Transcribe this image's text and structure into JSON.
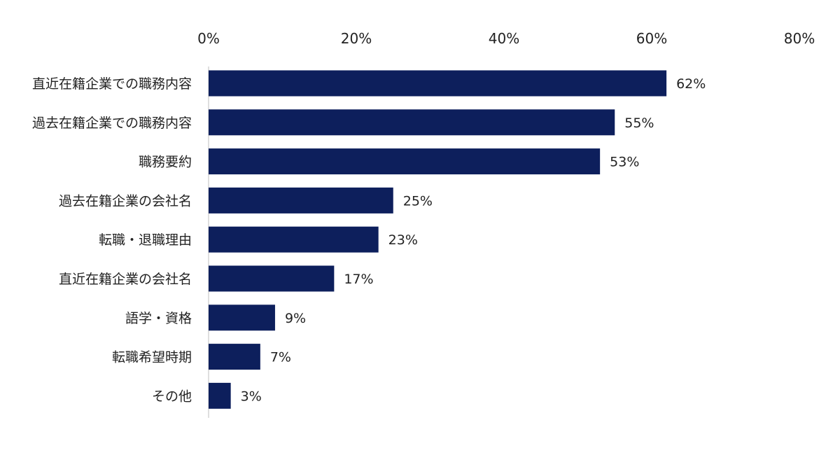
{
  "chart_data": {
    "type": "bar",
    "orientation": "horizontal",
    "categories": [
      "直近在籍企業での職務内容",
      "過去在籍企業での職務内容",
      "職務要約",
      "過去在籍企業の会社名",
      "転職・退職理由",
      "直近在籍企業の会社名",
      "語学・資格",
      "転職希望時期",
      "その他"
    ],
    "values": [
      62,
      55,
      53,
      25,
      23,
      17,
      9,
      7,
      3
    ],
    "value_labels": [
      "62%",
      "55%",
      "53%",
      "25%",
      "23%",
      "17%",
      "9%",
      "7%",
      "3%"
    ],
    "xlim": [
      0,
      80
    ],
    "xticks": [
      0,
      20,
      40,
      60,
      80
    ],
    "xtick_labels": [
      "0%",
      "20%",
      "40%",
      "60%",
      "80%"
    ],
    "axis_position": "top",
    "grid": false,
    "bar_color": "#0d1f5c"
  }
}
